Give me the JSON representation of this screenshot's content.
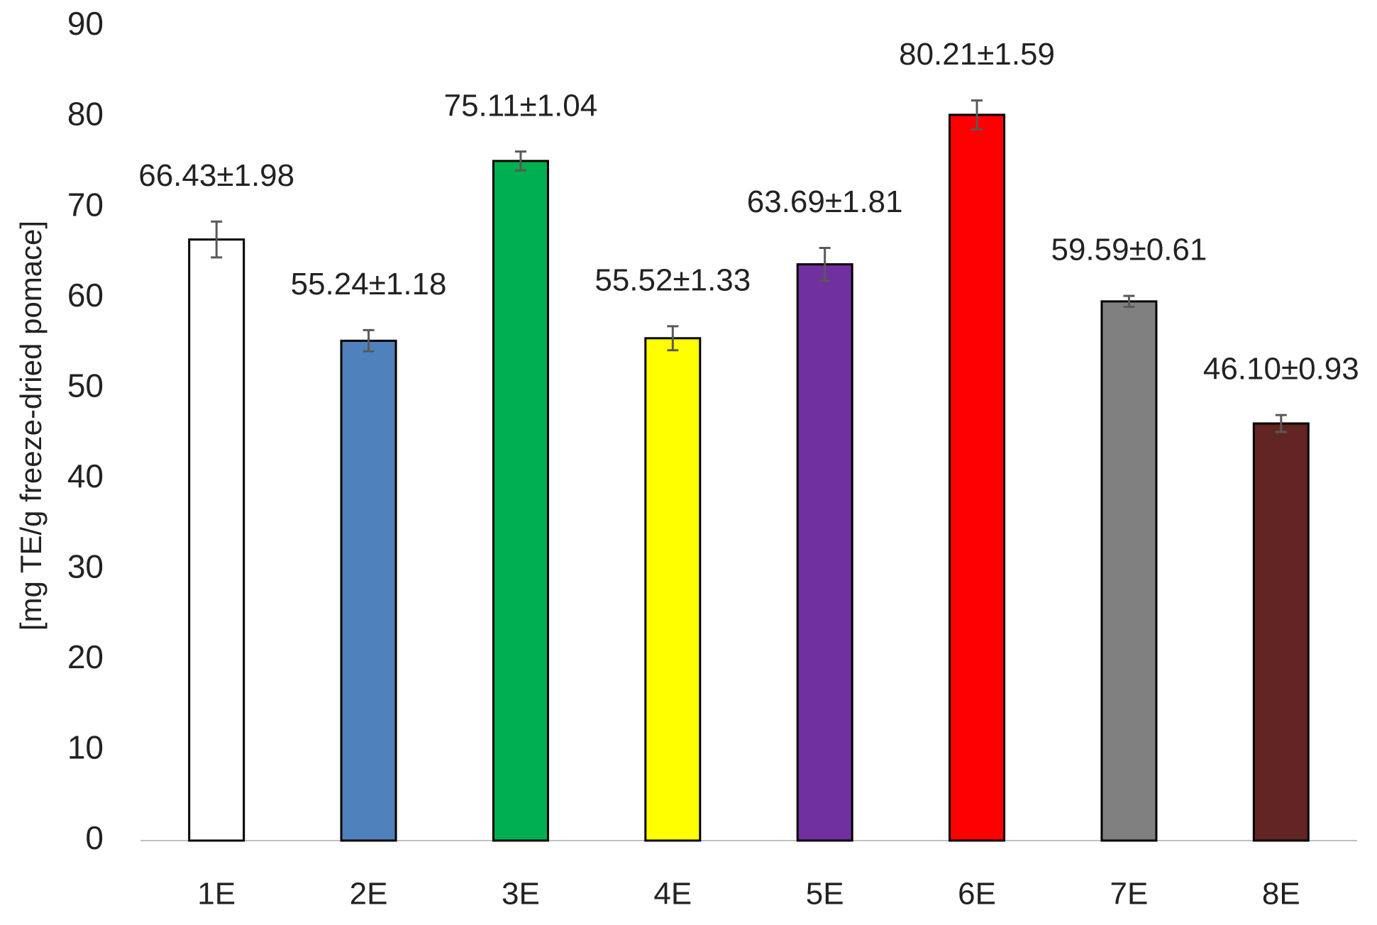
{
  "chart_data": {
    "type": "bar",
    "y_label": "[mg TE/g freeze-dried pomace]",
    "categories": [
      "1E",
      "2E",
      "3E",
      "4E",
      "5E",
      "6E",
      "7E",
      "8E"
    ],
    "values": [
      66.43,
      55.24,
      75.11,
      55.52,
      63.69,
      80.21,
      59.59,
      46.1
    ],
    "errors": [
      1.98,
      1.18,
      1.04,
      1.33,
      1.81,
      1.59,
      0.61,
      0.93
    ],
    "value_labels": [
      "66.43±1.98",
      "55.24±1.18",
      "75.11±1.04",
      "55.52±1.33",
      "63.69±1.81",
      "80.21±1.59",
      "59.59±0.61",
      "46.10±0.93"
    ],
    "colors": [
      "#ffffff",
      "#4f81bd",
      "#00b050",
      "#ffff00",
      "#7030a0",
      "#ff0000",
      "#808080",
      "#632523"
    ],
    "ylim": [
      0,
      90
    ],
    "yticks": [
      0,
      10,
      20,
      30,
      40,
      50,
      60,
      70,
      80,
      90
    ],
    "grid": false
  }
}
